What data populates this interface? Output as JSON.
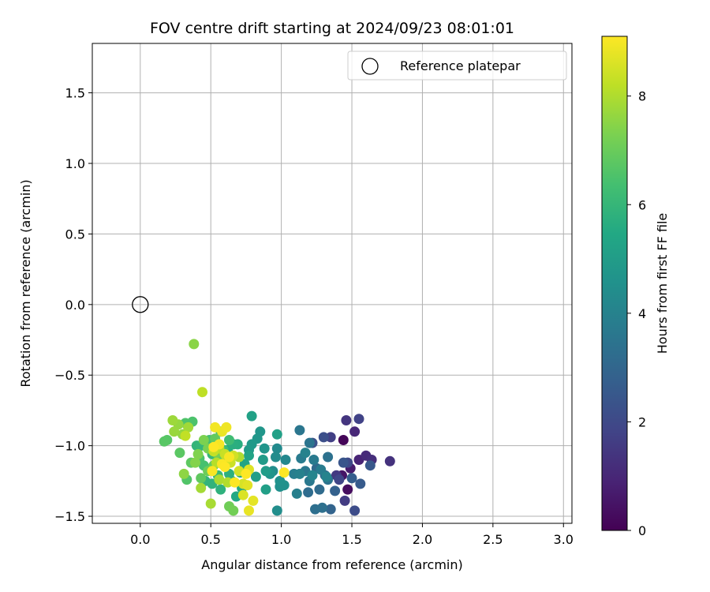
{
  "chart_data": {
    "type": "scatter",
    "title": "FOV centre drift starting at 2024/09/23 08:01:01",
    "xlabel": "Angular distance from reference (arcmin)",
    "ylabel": "Rotation from reference (arcmin)",
    "xlim": [
      -0.34,
      3.06
    ],
    "ylim": [
      -1.55,
      1.85
    ],
    "x_ticks": [
      "0.0",
      "0.5",
      "1.0",
      "1.5",
      "2.0",
      "2.5",
      "3.0"
    ],
    "y_ticks": [
      "−1.5",
      "−1.0",
      "−0.5",
      "0.0",
      "0.5",
      "1.0",
      "1.5"
    ],
    "x_tick_values": [
      0,
      0.5,
      1.0,
      1.5,
      2.0,
      2.5,
      3.0
    ],
    "y_tick_values": [
      -1.5,
      -1.0,
      -0.5,
      0,
      0.5,
      1.0,
      1.5
    ],
    "grid": true,
    "legend": {
      "position": "top-right",
      "entries": [
        "Reference platepar"
      ]
    },
    "reference_point": {
      "x": 0.0,
      "y": 0.0
    },
    "colorbar": {
      "label": "Hours from first FF file",
      "colormap": "viridis",
      "range": [
        0,
        9.1
      ],
      "ticks": [
        "0",
        "2",
        "4",
        "6",
        "8"
      ],
      "tick_values": [
        0,
        2,
        4,
        6,
        8
      ]
    },
    "points": [
      [
        1.44,
        -0.96,
        0.1
      ],
      [
        1.47,
        -1.31,
        0.3
      ],
      [
        1.43,
        -1.21,
        0.5
      ],
      [
        1.49,
        -1.16,
        0.7
      ],
      [
        1.55,
        -1.1,
        0.9
      ],
      [
        1.52,
        -0.9,
        1.0
      ],
      [
        1.6,
        -1.07,
        1.1
      ],
      [
        1.64,
        -1.1,
        1.2
      ],
      [
        1.77,
        -1.11,
        1.3
      ],
      [
        1.46,
        -0.82,
        1.4
      ],
      [
        1.39,
        -1.21,
        1.5
      ],
      [
        1.45,
        -1.39,
        1.6
      ],
      [
        1.35,
        -0.94,
        1.7
      ],
      [
        1.55,
        -0.81,
        1.8
      ],
      [
        1.41,
        -1.24,
        1.9
      ],
      [
        1.47,
        -1.12,
        2.0
      ],
      [
        1.52,
        -1.46,
        2.1
      ],
      [
        1.3,
        -0.94,
        2.2
      ],
      [
        1.22,
        -0.98,
        2.3
      ],
      [
        1.44,
        -1.12,
        2.4
      ],
      [
        1.63,
        -1.14,
        2.5
      ],
      [
        1.56,
        -1.27,
        2.6
      ],
      [
        1.5,
        -1.23,
        2.7
      ],
      [
        1.38,
        -1.32,
        2.8
      ],
      [
        1.35,
        -1.45,
        2.9
      ],
      [
        1.31,
        -1.21,
        3.0
      ],
      [
        1.25,
        -1.16,
        3.1
      ],
      [
        1.27,
        -1.31,
        3.15
      ],
      [
        1.19,
        -1.33,
        3.2
      ],
      [
        1.24,
        -1.45,
        3.3
      ],
      [
        1.29,
        -1.44,
        3.35
      ],
      [
        1.33,
        -1.08,
        3.4
      ],
      [
        1.33,
        -1.24,
        3.45
      ],
      [
        1.2,
        -0.98,
        3.5
      ],
      [
        1.13,
        -0.89,
        3.55
      ],
      [
        1.17,
        -1.18,
        3.6
      ],
      [
        1.2,
        -1.25,
        3.65
      ],
      [
        1.23,
        -1.1,
        3.7
      ],
      [
        1.14,
        -1.09,
        3.75
      ],
      [
        1.28,
        -1.17,
        3.8
      ],
      [
        1.09,
        -1.2,
        3.85
      ],
      [
        1.11,
        -1.34,
        3.9
      ],
      [
        1.13,
        -1.2,
        3.95
      ],
      [
        1.17,
        -1.05,
        4.0
      ],
      [
        1.32,
        -1.22,
        4.05
      ],
      [
        1.22,
        -1.21,
        4.1
      ],
      [
        1.03,
        -1.1,
        4.2
      ],
      [
        0.97,
        -1.02,
        4.3
      ],
      [
        0.96,
        -1.08,
        4.35
      ],
      [
        0.94,
        -1.18,
        4.4
      ],
      [
        0.97,
        -1.46,
        4.45
      ],
      [
        0.99,
        -1.29,
        4.5
      ],
      [
        1.02,
        -1.28,
        4.55
      ],
      [
        0.99,
        -1.25,
        4.6
      ],
      [
        0.92,
        -1.2,
        4.65
      ],
      [
        0.88,
        -1.02,
        4.7
      ],
      [
        0.85,
        -0.9,
        4.75
      ],
      [
        0.83,
        -0.95,
        4.8
      ],
      [
        0.79,
        -0.99,
        4.85
      ],
      [
        0.77,
        -1.03,
        4.9
      ],
      [
        0.87,
        -1.1,
        4.95
      ],
      [
        0.89,
        -1.18,
        5.0
      ],
      [
        0.82,
        -1.22,
        5.05
      ],
      [
        0.89,
        -1.31,
        5.1
      ],
      [
        0.97,
        -0.92,
        5.15
      ],
      [
        0.79,
        -0.79,
        5.2
      ],
      [
        0.77,
        -1.07,
        5.25
      ],
      [
        0.74,
        -1.13,
        5.3
      ],
      [
        0.71,
        -1.19,
        5.35
      ],
      [
        0.65,
        -1.25,
        5.4
      ],
      [
        0.68,
        -1.36,
        5.45
      ],
      [
        0.72,
        -1.3,
        5.5
      ],
      [
        0.6,
        -1.1,
        5.55
      ],
      [
        0.62,
        -1.03,
        5.6
      ],
      [
        0.69,
        -0.99,
        5.65
      ],
      [
        0.66,
        -0.99,
        5.7
      ],
      [
        0.63,
        -1.2,
        5.75
      ],
      [
        0.57,
        -1.31,
        5.8
      ],
      [
        0.51,
        -1.27,
        5.85
      ],
      [
        0.46,
        -1.25,
        5.9
      ],
      [
        0.4,
        -1.0,
        5.95
      ],
      [
        0.43,
        -1.0,
        6.0
      ],
      [
        0.51,
        -1.06,
        6.05
      ],
      [
        0.55,
        -1.21,
        6.1
      ],
      [
        0.61,
        -1.12,
        6.15
      ],
      [
        0.59,
        -1.03,
        6.2
      ],
      [
        0.63,
        -0.96,
        6.25
      ],
      [
        0.57,
        -0.9,
        6.3
      ],
      [
        0.49,
        -0.96,
        6.35
      ],
      [
        0.45,
        -1.14,
        6.4
      ],
      [
        0.42,
        -1.09,
        6.45
      ],
      [
        0.37,
        -0.83,
        6.5
      ],
      [
        0.32,
        -0.84,
        6.55
      ],
      [
        0.33,
        -1.24,
        6.6
      ],
      [
        0.19,
        -0.96,
        6.65
      ],
      [
        0.17,
        -0.97,
        6.7
      ],
      [
        0.28,
        -1.05,
        6.75
      ],
      [
        0.36,
        -1.12,
        6.8
      ],
      [
        0.43,
        -1.23,
        6.85
      ],
      [
        0.53,
        -0.95,
        6.9
      ],
      [
        0.56,
        -1.08,
        6.95
      ],
      [
        0.52,
        -1.14,
        7.0
      ],
      [
        0.48,
        -1.18,
        7.05
      ],
      [
        0.63,
        -1.43,
        7.1
      ],
      [
        0.66,
        -1.46,
        7.15
      ],
      [
        0.54,
        -1.05,
        7.2
      ],
      [
        0.48,
        -1.02,
        7.25
      ],
      [
        0.45,
        -0.96,
        7.3
      ],
      [
        0.41,
        -1.06,
        7.35
      ],
      [
        0.39,
        -1.12,
        7.4
      ],
      [
        0.38,
        -0.28,
        7.5
      ],
      [
        0.31,
        -1.2,
        7.55
      ],
      [
        0.3,
        -0.92,
        7.6
      ],
      [
        0.27,
        -0.85,
        7.65
      ],
      [
        0.24,
        -0.9,
        7.7
      ],
      [
        0.23,
        -0.82,
        7.75
      ],
      [
        0.34,
        -0.87,
        7.8
      ],
      [
        0.43,
        -1.3,
        7.85
      ],
      [
        0.5,
        -1.41,
        7.9
      ],
      [
        0.56,
        -1.24,
        7.95
      ],
      [
        0.7,
        -1.08,
        8.0
      ],
      [
        0.62,
        -1.26,
        8.05
      ],
      [
        0.54,
        -1.12,
        8.1
      ],
      [
        0.56,
        -1.02,
        8.15
      ],
      [
        0.44,
        -0.62,
        8.2
      ],
      [
        0.32,
        -0.93,
        8.25
      ],
      [
        0.52,
        -1.04,
        8.3
      ],
      [
        0.6,
        -1.06,
        8.35
      ],
      [
        0.64,
        -1.12,
        8.4
      ],
      [
        0.66,
        -1.07,
        8.45
      ],
      [
        0.7,
        -1.18,
        8.5
      ],
      [
        0.73,
        -1.27,
        8.55
      ],
      [
        0.73,
        -1.35,
        8.6
      ],
      [
        0.77,
        -1.17,
        8.65
      ],
      [
        0.76,
        -1.28,
        8.7
      ],
      [
        0.8,
        -1.39,
        8.75
      ],
      [
        0.77,
        -1.46,
        8.8
      ],
      [
        0.58,
        -0.9,
        8.85
      ],
      [
        0.61,
        -0.87,
        8.9
      ],
      [
        0.53,
        -0.87,
        8.95
      ],
      [
        0.56,
        -0.99,
        9.0
      ],
      [
        0.63,
        -1.08,
        9.02
      ],
      [
        0.51,
        -1.18,
        9.04
      ],
      [
        0.58,
        -1.13,
        9.06
      ],
      [
        1.02,
        -1.19,
        9.08
      ],
      [
        0.67,
        -1.26,
        9.1
      ],
      [
        0.75,
        -1.2,
        9.1
      ],
      [
        0.52,
        -1.01,
        9.1
      ],
      [
        0.6,
        -1.15,
        9.1
      ]
    ]
  }
}
